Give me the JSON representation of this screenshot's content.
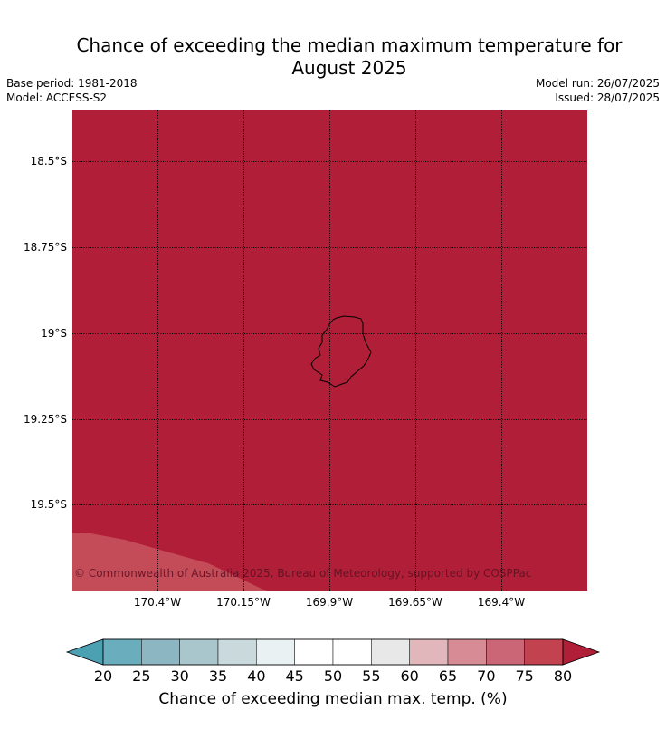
{
  "title": {
    "line1": "Chance of exceeding the median maximum temperature for",
    "line2": "August 2025"
  },
  "meta": {
    "base_period": "Base period: 1981-2018",
    "model": "Model: ACCESS-S2",
    "model_run": "Model run: 26/07/2025",
    "issued": "Issued: 28/07/2025"
  },
  "map": {
    "fill_color": "#b11e38",
    "corner_color": "#c44b58",
    "lat_labels": [
      "18.5°S",
      "18.75°S",
      "19°S",
      "19.25°S",
      "19.5°S"
    ],
    "lon_labels": [
      "170.4°W",
      "170.15°W",
      "169.9°W",
      "169.65°W",
      "169.4°W"
    ],
    "copyright": "© Commonwealth of Australia 2025, Bureau of Meteorology, supported by COSPPac"
  },
  "colorbar": {
    "ticks": [
      "20",
      "25",
      "30",
      "35",
      "40",
      "45",
      "50",
      "55",
      "60",
      "65",
      "70",
      "75",
      "80"
    ],
    "colors": [
      "#6aaebe",
      "#8bb6c2",
      "#a8c6cb",
      "#c9d9dc",
      "#eaf1f2",
      "#ffffff",
      "#ffffff",
      "#e9e8e9",
      "#e2b7bb",
      "#d68b95",
      "#ca6675",
      "#c2424f"
    ],
    "under_color": "#4ba0b2",
    "over_color": "#b11e38",
    "label": "Chance of exceeding median max. temp. (%)"
  }
}
